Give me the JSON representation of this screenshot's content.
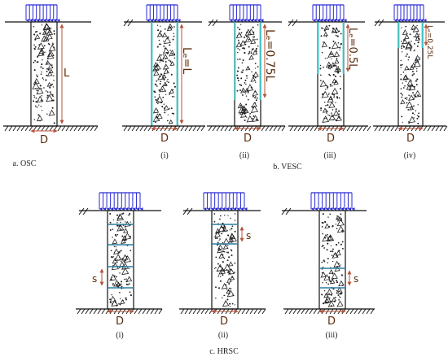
{
  "colors": {
    "load_arrow": "#2a2ad6",
    "column_fill": "#ffffff",
    "column_outline": "#111111",
    "encasement": "#37c6c6",
    "dimension": "#b5533a",
    "ground": "#111111",
    "aggregate": "#222222"
  },
  "labels": {
    "diameter": "D",
    "length": "L",
    "spacing": "s"
  },
  "panels": {
    "osc": {
      "caption": "a. OSC"
    },
    "vesc": {
      "caption": "b. VESC",
      "items": [
        {
          "roman": "(i)",
          "encased_label": "Lₑ=L",
          "fraction": 1.0
        },
        {
          "roman": "(ii)",
          "encased_label": "Lₑ=0.75L",
          "fraction": 0.75
        },
        {
          "roman": "(iii)",
          "encased_label": "Lₑ=0.5L",
          "fraction": 0.5
        },
        {
          "roman": "(iv)",
          "encased_label": "Lₑ=0.25L",
          "fraction": 0.25
        }
      ]
    },
    "hrsc": {
      "caption": "c. HRSC",
      "items": [
        {
          "roman": "(i)"
        },
        {
          "roman": "(ii)"
        },
        {
          "roman": "(iii)"
        }
      ]
    }
  }
}
